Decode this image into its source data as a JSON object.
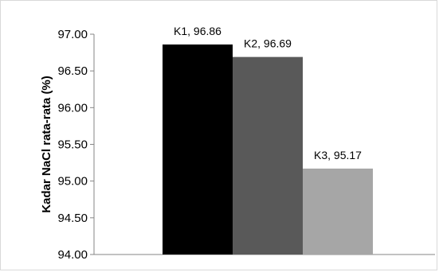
{
  "chart_data": {
    "type": "bar",
    "categories": [
      "K1",
      "K2",
      "K3"
    ],
    "values": [
      96.86,
      96.69,
      95.17
    ],
    "data_labels": [
      "K1, 96.86",
      "K2, 96.69",
      "K3, 95.17"
    ],
    "colors": [
      "#000000",
      "#595959",
      "#a6a6a6"
    ],
    "title": "",
    "xlabel": "",
    "ylabel": "Kadar NaCl rata-rata (%)",
    "ylim": [
      94.0,
      97.0
    ],
    "yticks": [
      "94.00",
      "94.50",
      "95.00",
      "95.50",
      "96.00",
      "96.50",
      "97.00"
    ],
    "grid": false,
    "legend": "none"
  }
}
